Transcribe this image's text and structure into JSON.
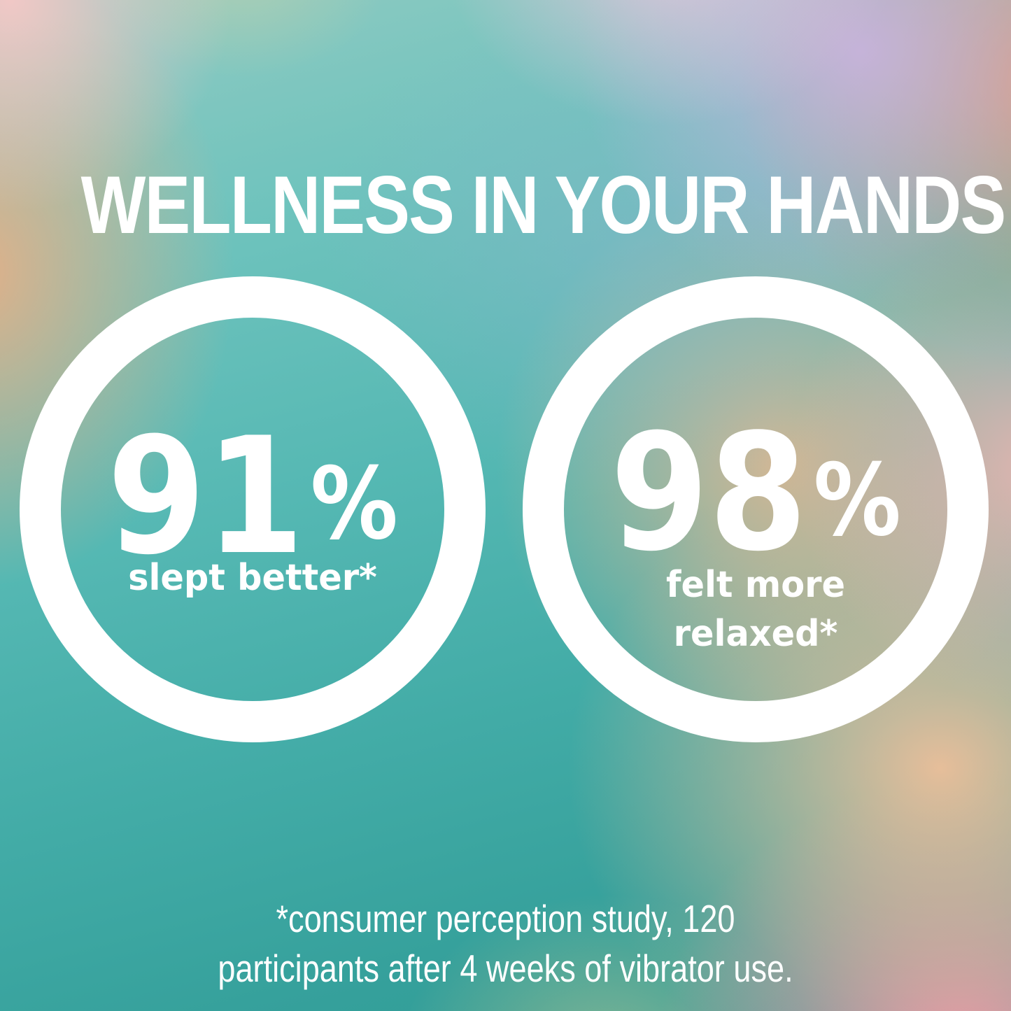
{
  "title": "WELLNESS IN YOUR HANDS",
  "stats": {
    "left": {
      "value": "91",
      "unit": "%",
      "label": "slept better*"
    },
    "right": {
      "value": "98",
      "unit": "%",
      "label_line1": "felt more",
      "label_line2": "relaxed*"
    }
  },
  "footnote": {
    "line1": "*consumer perception study, 120",
    "line2": "participants after 4 weeks of vibrator use."
  },
  "colors": {
    "text": "#ffffff",
    "ring": "#ffffff",
    "teal": "#3fa9a4",
    "teal_dark": "#2f9b96",
    "peach": "#f5c09a",
    "salmon": "#e79467",
    "pink": "#ee93a8",
    "pink_soft": "#f4b4b0",
    "pink_corner": "#f8c8c7",
    "lavender": "#c9b3de",
    "orange": "#efae82",
    "steel_blue": "#8fb4cc"
  }
}
